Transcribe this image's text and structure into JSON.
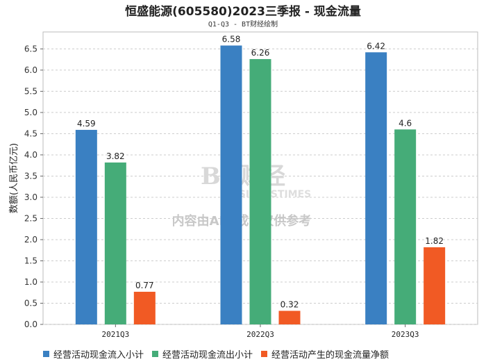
{
  "chart_data": {
    "type": "bar",
    "title": "恒盛能源(605580)2023三季报 - 现金流量",
    "subtitle": "Q1-Q3 - BT财经绘制",
    "xlabel": "",
    "ylabel": "数额(人民币亿元)",
    "categories": [
      "2021Q3",
      "2022Q3",
      "2023Q3"
    ],
    "series": [
      {
        "name": "经营活动现金流入小计",
        "color": "#3a80c2",
        "values": [
          4.59,
          6.58,
          6.42
        ],
        "labels": [
          "4.59",
          "6.58",
          "6.42"
        ]
      },
      {
        "name": "经营活动现金流出小计",
        "color": "#45ac78",
        "values": [
          3.82,
          6.26,
          4.6
        ],
        "labels": [
          "3.82",
          "6.26",
          "4.6"
        ]
      },
      {
        "name": "经营活动产生的现金流量净额",
        "color": "#f15a24",
        "values": [
          0.77,
          0.32,
          1.82
        ],
        "labels": [
          "0.77",
          "0.32",
          "1.82"
        ]
      }
    ],
    "ylim": [
      0,
      6.9
    ],
    "yticks": [
      "0.0",
      "0.5",
      "1.0",
      "1.5",
      "2.0",
      "2.5",
      "3.0",
      "3.5",
      "4.0",
      "4.5",
      "5.0",
      "5.5",
      "6.0",
      "6.5"
    ],
    "grid": true,
    "legend_position": "bottom-left"
  },
  "watermark": {
    "brand": "BT财经",
    "brand_sub": "BUSINESSTIMES",
    "notice": "内容由AI生成，仅供参考"
  }
}
